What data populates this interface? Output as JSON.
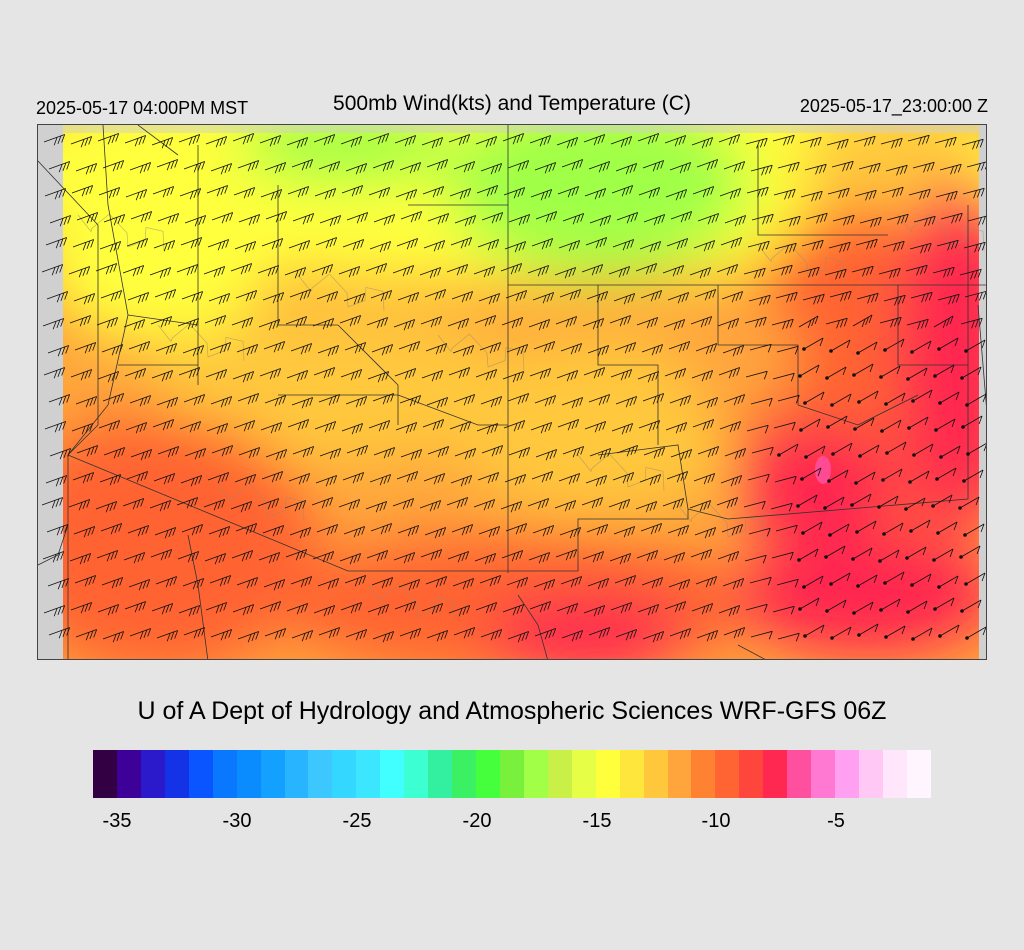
{
  "header": {
    "valid_local": "2025-05-17 04:00PM MST",
    "title": "500mb Wind(kts) and Temperature (C)",
    "valid_utc": "2025-05-17_23:00:00 Z"
  },
  "footer": {
    "credit": "U of A Dept of Hydrology and Atmospheric Sciences WRF-GFS 06Z"
  },
  "legend": {
    "colors": [
      "#330044",
      "#3d0099",
      "#2b1acc",
      "#1433e6",
      "#0a55ff",
      "#0a77ff",
      "#0a8cff",
      "#14a0ff",
      "#28b4ff",
      "#3cc8ff",
      "#33d7ff",
      "#3ce6ff",
      "#41ffff",
      "#3cffd2",
      "#32f0a0",
      "#3cf064",
      "#46ff3c",
      "#78f03c",
      "#a0ff46",
      "#c8f046",
      "#e6ff46",
      "#ffff3c",
      "#ffe63c",
      "#ffc83c",
      "#ffa53c",
      "#ff8232",
      "#ff6432",
      "#ff463c",
      "#ff2850",
      "#ff50a0",
      "#ff78d2",
      "#ffa0f0",
      "#ffc8f5",
      "#ffe6fa",
      "#fff5ff"
    ],
    "ticks": [
      "-35",
      "-30",
      "-25",
      "-20",
      "-15",
      "-10",
      "-5"
    ]
  },
  "map": {
    "field_colors": {
      "cold": "#a0ff46",
      "cool": "#e6ff46",
      "mild": "#ffff3c",
      "warmish": "#ffc83c",
      "warm": "#ffa53c",
      "hot": "#ff6432",
      "hottest": "#ff2850",
      "extreme": "#ff50a0"
    }
  }
}
